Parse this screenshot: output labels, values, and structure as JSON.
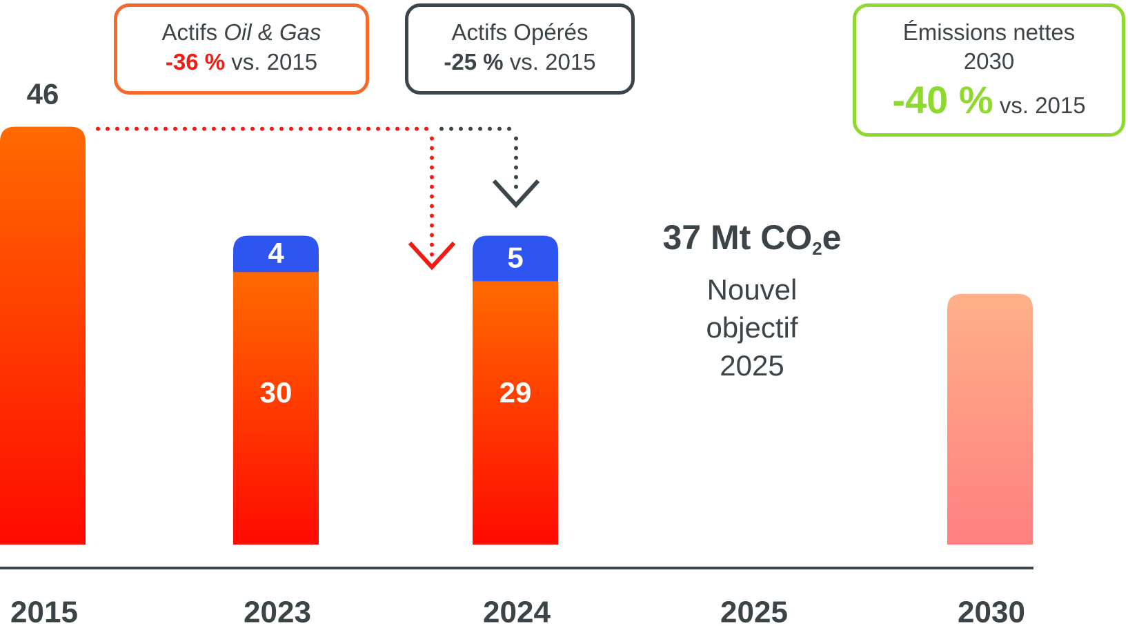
{
  "chart_data": {
    "type": "bar",
    "categories": [
      "2015",
      "2023",
      "2024",
      "2025",
      "2030"
    ],
    "series": [
      {
        "name": "",
        "values": [
          46,
          30,
          29,
          null,
          null
        ],
        "color": "#ff2a00"
      },
      {
        "name": "",
        "values": [
          null,
          4,
          5,
          null,
          null
        ],
        "color": "#2f55f0"
      }
    ],
    "target_2030": {
      "value": 27.6,
      "color": "#ffa07a"
    },
    "bar_labels": {
      "2015": "46",
      "2023": [
        "30",
        "4"
      ],
      "2024": [
        "29",
        "5"
      ]
    },
    "ylim": [
      0,
      50
    ],
    "grid": false,
    "colors": {
      "orange_top": "#ff6a00",
      "red_bottom": "#ff0a00",
      "blue": "#2f55f0",
      "target_top": "#ffb088",
      "target_bottom": "#ff8080",
      "axis": "#3b464c"
    }
  },
  "callouts": {
    "oil_gas": {
      "prefix": "Actifs ",
      "italic": "Oil & Gas",
      "pct": "-36 %",
      "suffix": " vs. 2015",
      "color": "#ee1c14"
    },
    "operated": {
      "line1": "Actifs Opérés",
      "pct": "-25 %",
      "suffix": " vs. 2015",
      "color": "#3b464c"
    },
    "net": {
      "line1": "Émissions nettes",
      "line2": "2030",
      "pct": "-40 %",
      "suffix": " vs. 2015",
      "color": "#8fd82f"
    }
  },
  "objective": {
    "value": "37 Mt CO",
    "sub": "2",
    "unit_end": "e",
    "line1": "Nouvel",
    "line2": "objectif",
    "line3": "2025"
  }
}
